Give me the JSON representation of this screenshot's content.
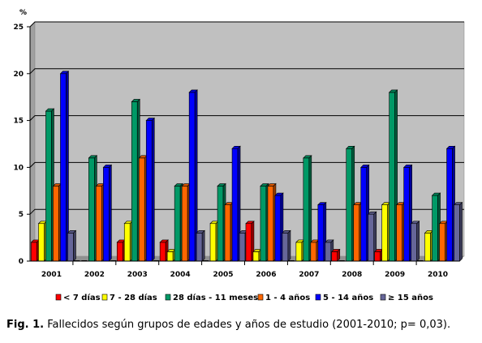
{
  "chart_data": {
    "type": "bar",
    "ylabel": "%",
    "ylim": [
      0,
      25
    ],
    "yticks": [
      0,
      5,
      10,
      15,
      20,
      25
    ],
    "grid": true,
    "legend_position": "bottom",
    "categories": [
      "2001",
      "2002",
      "2003",
      "2004",
      "2005",
      "2006",
      "2007",
      "2008",
      "2009",
      "2010"
    ],
    "series": [
      {
        "name": "< 7 días",
        "color": "#ff0000",
        "values": [
          2,
          0,
          2,
          2,
          0,
          4,
          0,
          1,
          1,
          0
        ]
      },
      {
        "name": "7 - 28 días",
        "color": "#ffff00",
        "values": [
          4,
          0,
          4,
          1,
          4,
          1,
          2,
          0,
          6,
          3
        ]
      },
      {
        "name": "28 días - 11 meses",
        "color": "#009966",
        "values": [
          16,
          11,
          17,
          8,
          8,
          8,
          11,
          12,
          18,
          7
        ]
      },
      {
        "name": "1 - 4 años",
        "color": "#ff6600",
        "values": [
          8,
          8,
          11,
          8,
          6,
          8,
          2,
          6,
          6,
          4
        ]
      },
      {
        "name": "5 - 14 años",
        "color": "#0000ff",
        "values": [
          20,
          10,
          15,
          18,
          12,
          7,
          6,
          10,
          10,
          12
        ]
      },
      {
        "name": "≥ 15 años",
        "color": "#666699",
        "values": [
          3,
          0,
          0,
          3,
          3,
          3,
          2,
          5,
          4,
          6
        ]
      }
    ]
  },
  "caption": {
    "label": "Fig. 1.",
    "text": " Fallecidos según grupos de edades y años de estudio (2001-2010; p= 0,03)."
  }
}
